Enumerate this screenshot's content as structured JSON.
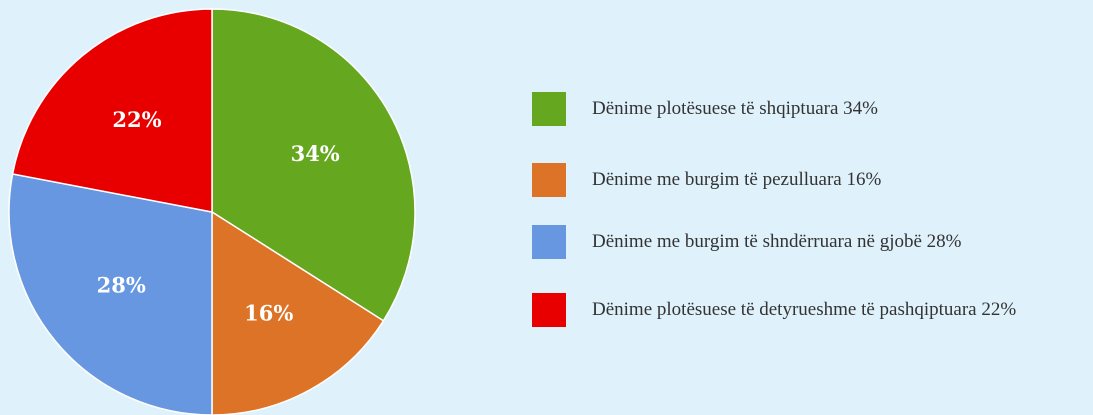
{
  "chart_data": {
    "type": "pie",
    "categories": [
      "Dënime plotësuese të shqiptuara 34%",
      "Dënime me burgim të pezulluara 16%",
      "Dënime me burgim të shndërruara në gjobë 28%",
      "Dënime plotësuese të detyrueshme të pashqiptuara 22%"
    ],
    "values": [
      34,
      16,
      28,
      22
    ],
    "value_labels": [
      "34%",
      "16%",
      "28%",
      "22%"
    ],
    "colors": [
      "#65a81f",
      "#dd7326",
      "#6797e0",
      "#e80000"
    ],
    "legend": "right"
  }
}
